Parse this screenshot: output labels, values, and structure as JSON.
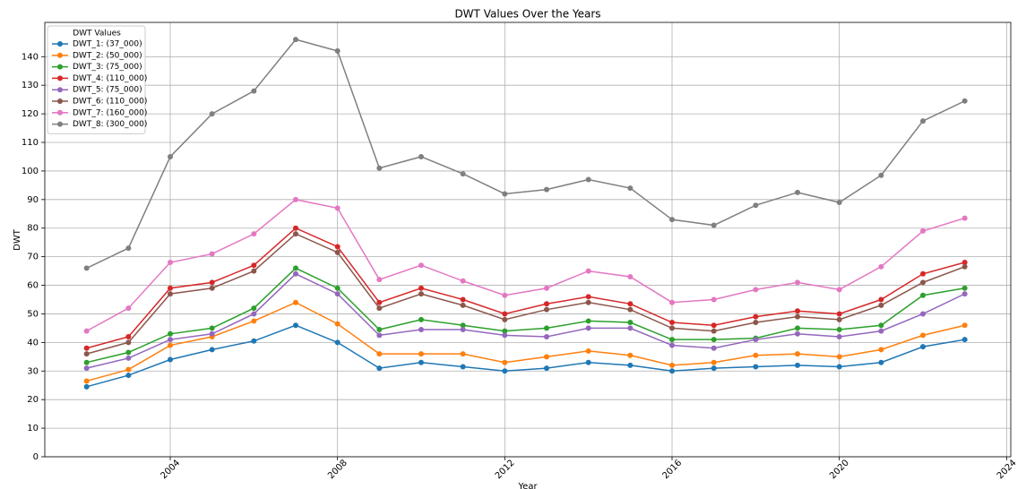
{
  "chart_data": {
    "type": "line",
    "title": "DWT Values Over the Years",
    "x_label": "Year",
    "y_label": "DWT",
    "x": [
      2002,
      2003,
      2004,
      2005,
      2006,
      2007,
      2008,
      2009,
      2010,
      2011,
      2012,
      2013,
      2014,
      2015,
      2016,
      2017,
      2018,
      2019,
      2020,
      2021,
      2022,
      2023
    ],
    "xlim": [
      2001,
      2024.1
    ],
    "xticks": [
      2004,
      2008,
      2012,
      2016,
      2020,
      2024
    ],
    "ylim": [
      0,
      152
    ],
    "yticks": [
      0,
      10,
      20,
      30,
      40,
      50,
      60,
      70,
      80,
      90,
      100,
      110,
      120,
      130,
      140
    ],
    "grid": true,
    "legend_title": "DWT Values",
    "legend_position": "upper-left",
    "series": [
      {
        "name": "DWT_1: (37_000)",
        "color": "#1f77b4",
        "values": [
          24.5,
          28.5,
          34,
          37.5,
          40.5,
          46,
          40,
          31,
          33,
          31.5,
          30,
          31,
          33,
          32,
          30,
          31,
          31.5,
          32,
          31.5,
          33,
          38.5,
          41
        ]
      },
      {
        "name": "DWT_2: (50_000)",
        "color": "#ff7f0e",
        "values": [
          26.5,
          30.5,
          39,
          42,
          47.5,
          54,
          46.5,
          36,
          36,
          36,
          33,
          35,
          37,
          35.5,
          32,
          33,
          35.5,
          36,
          35,
          37.5,
          42.5,
          46
        ]
      },
      {
        "name": "DWT_3: (75_000)",
        "color": "#2ca02c",
        "values": [
          33,
          36.5,
          43,
          45,
          52,
          66,
          59,
          44.5,
          48,
          46,
          44,
          45,
          47.5,
          47,
          41,
          41,
          41.5,
          45,
          44.5,
          46,
          56.5,
          59
        ]
      },
      {
        "name": "DWT_4: (110_000)",
        "color": "#d62728",
        "values": [
          38,
          42,
          59,
          61,
          67,
          80,
          73.5,
          54,
          59,
          55,
          50,
          53.5,
          56,
          53.5,
          47,
          46,
          49,
          51,
          50,
          55,
          64,
          68
        ]
      },
      {
        "name": "DWT_5: (75_000)",
        "color": "#9467bd",
        "values": [
          31,
          34.5,
          41,
          43,
          50,
          64,
          57,
          42.5,
          44.5,
          44.5,
          42.5,
          42,
          45,
          45,
          39,
          38,
          41,
          43,
          42,
          44,
          50,
          57
        ]
      },
      {
        "name": "DWT_6: (110_000)",
        "color": "#8c564b",
        "values": [
          36,
          40,
          57,
          59,
          65,
          78,
          71.5,
          52,
          57,
          53,
          48,
          51.5,
          54,
          51.5,
          45,
          44,
          47,
          49,
          48,
          53,
          61,
          66.5
        ]
      },
      {
        "name": "DWT_7: (160_000)",
        "color": "#e377c2",
        "values": [
          44,
          52,
          68,
          71,
          78,
          90,
          87,
          62,
          67,
          61.5,
          56.5,
          59,
          65,
          63,
          54,
          55,
          58.5,
          61,
          58.5,
          66.5,
          79,
          83.5
        ]
      },
      {
        "name": "DWT_8: (300_000)",
        "color": "#7f7f7f",
        "values": [
          66,
          73,
          105,
          120,
          128,
          146,
          142,
          101,
          105,
          99,
          92,
          93.5,
          97,
          94,
          83,
          81,
          88,
          92.5,
          89,
          98.5,
          117.5,
          124.5
        ]
      }
    ]
  }
}
